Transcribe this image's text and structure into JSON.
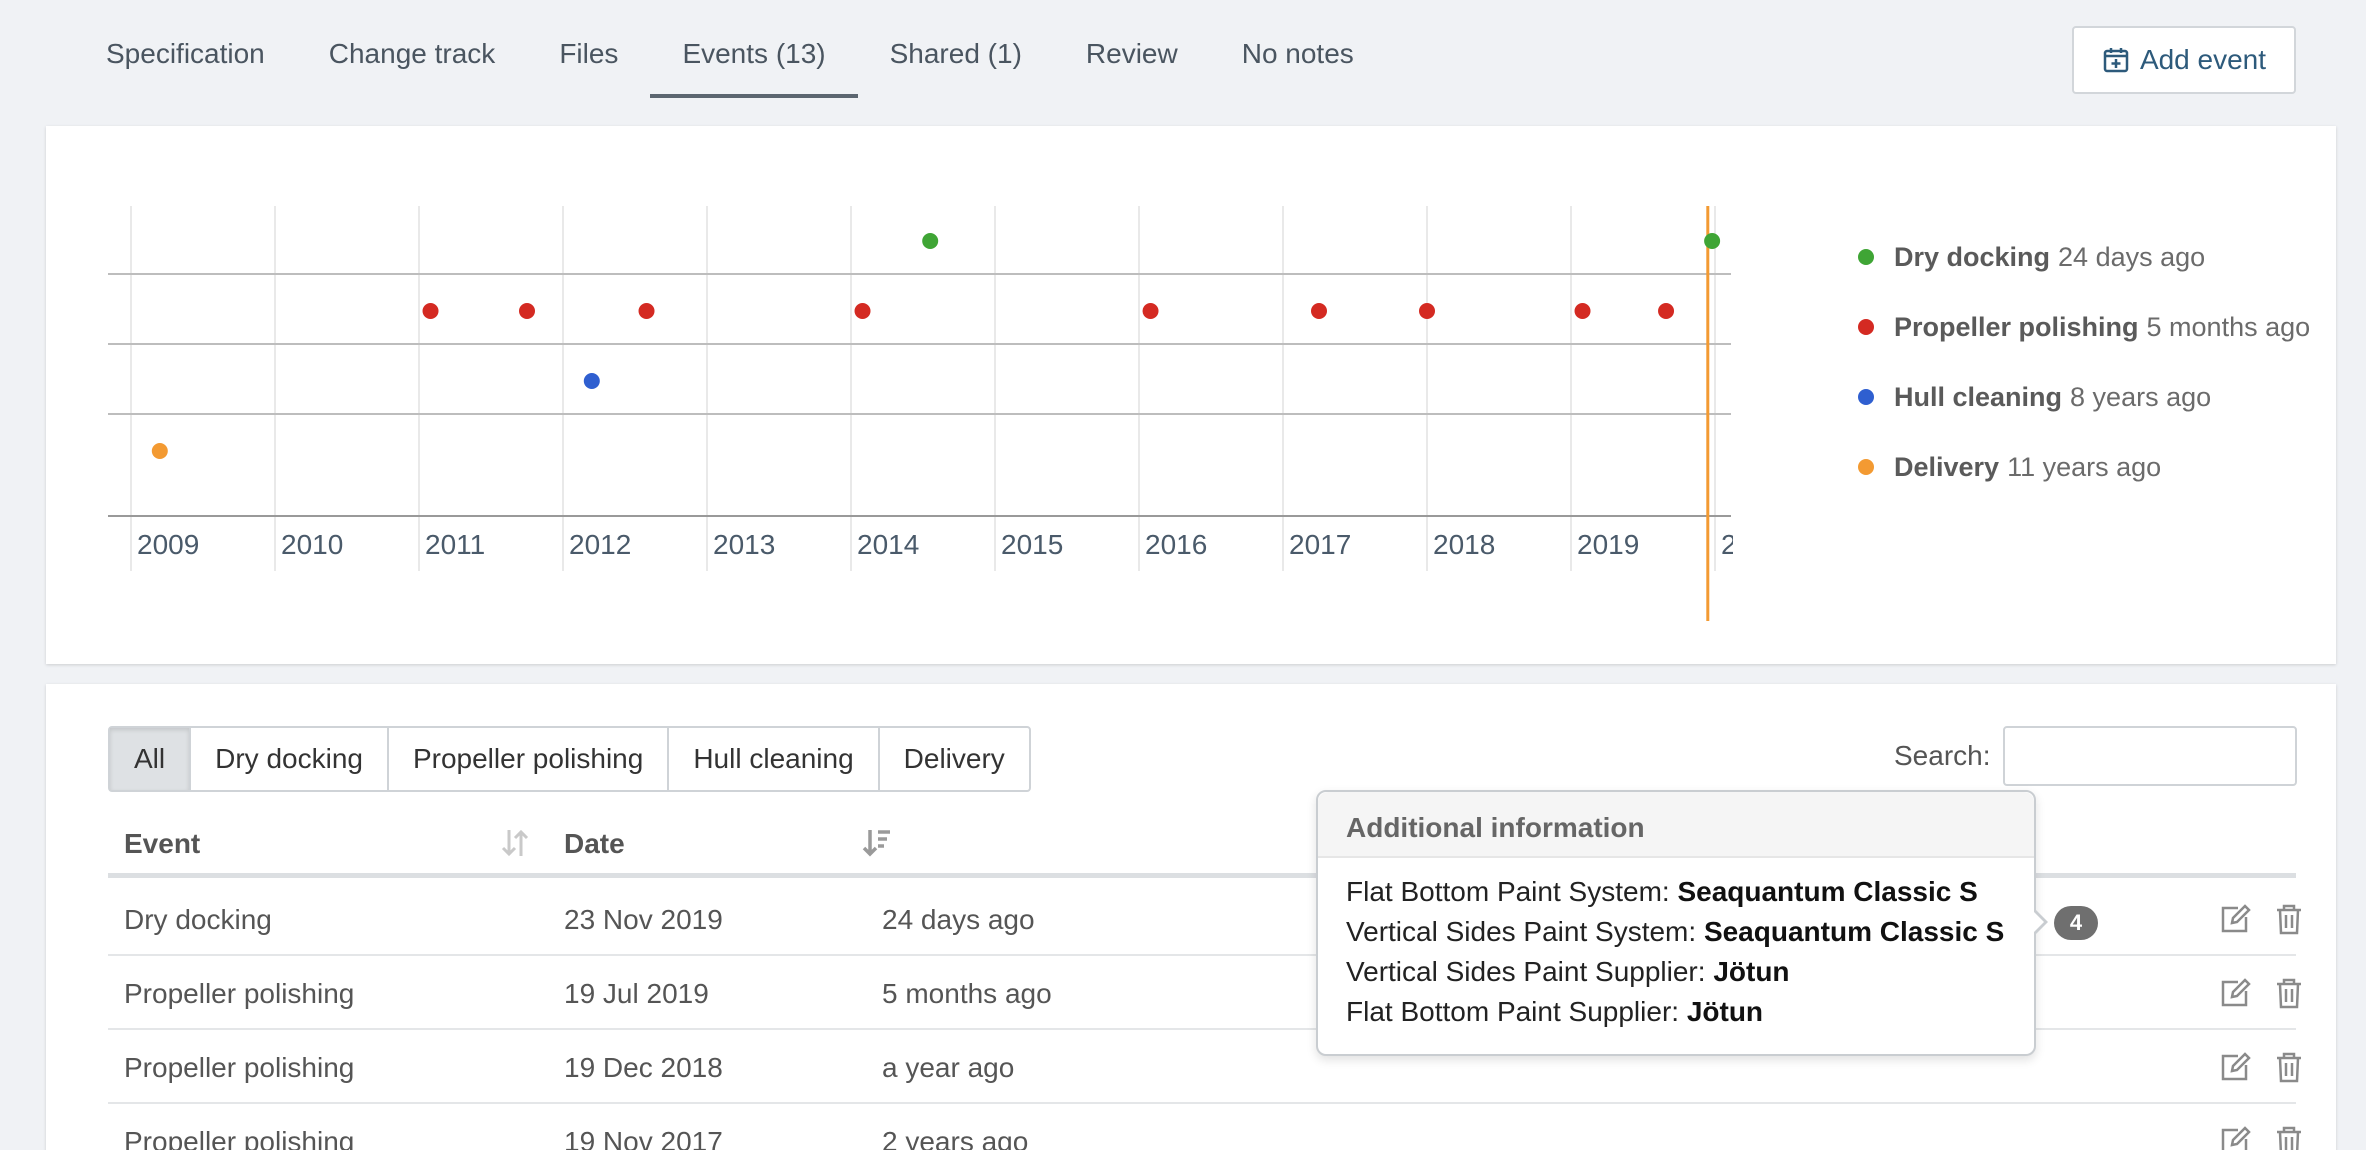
{
  "tabs": [
    {
      "label": "Specification"
    },
    {
      "label": "Change track"
    },
    {
      "label": "Files"
    },
    {
      "label": "Events (13)",
      "active": true
    },
    {
      "label": "Shared (1)"
    },
    {
      "label": "Review"
    },
    {
      "label": "No notes"
    }
  ],
  "add_event_label": "Add event",
  "timeline": {
    "years": [
      "2009",
      "2010",
      "2011",
      "2012",
      "2013",
      "2014",
      "2015",
      "2016",
      "2017",
      "2018",
      "2019",
      "2"
    ],
    "today_line_color": "#f39a32",
    "legend": [
      {
        "name": "Dry docking",
        "ago": "24 days ago",
        "color": "#3fa535"
      },
      {
        "name": "Propeller polishing",
        "ago": "5 months ago",
        "color": "#d42a22"
      },
      {
        "name": "Hull cleaning",
        "ago": "8 years ago",
        "color": "#2f5fd0"
      },
      {
        "name": "Delivery",
        "ago": "11 years ago",
        "color": "#f39a32"
      }
    ]
  },
  "chart_data": {
    "type": "scatter",
    "xlabel": "",
    "ylabel": "",
    "xlim": [
      2008.8,
      2020.1
    ],
    "series": [
      {
        "name": "Dry docking",
        "color": "#3fa535",
        "x": [
          2014.55,
          2019.98
        ]
      },
      {
        "name": "Propeller polishing",
        "color": "#d42a22",
        "x": [
          2011.08,
          2011.75,
          2012.58,
          2014.08,
          2016.08,
          2017.25,
          2018.0,
          2019.08,
          2019.66
        ]
      },
      {
        "name": "Hull cleaning",
        "color": "#2f5fd0",
        "x": [
          2012.2
        ]
      },
      {
        "name": "Delivery",
        "color": "#f39a32",
        "x": [
          2009.2
        ]
      }
    ],
    "today": 2019.95
  },
  "filters": [
    "All",
    "Dry docking",
    "Propeller polishing",
    "Hull cleaning",
    "Delivery"
  ],
  "search_label": "Search:",
  "search_value": "",
  "table": {
    "headers": {
      "event": "Event",
      "date": "Date"
    },
    "rows": [
      {
        "event": "Dry docking",
        "date": "23 Nov 2019",
        "ago": "24 days ago"
      },
      {
        "event": "Propeller polishing",
        "date": "19 Jul 2019",
        "ago": "5 months ago"
      },
      {
        "event": "Propeller polishing",
        "date": "19 Dec 2018",
        "ago": "a year ago"
      },
      {
        "event": "Propeller polishing",
        "date": "19 Nov 2017",
        "ago": "2 years ago"
      }
    ]
  },
  "popover": {
    "title": "Additional information",
    "lines": [
      {
        "key": "Flat Bottom Paint System: ",
        "value": "Seaquantum Classic S"
      },
      {
        "key": "Vertical Sides Paint System: ",
        "value": "Seaquantum Classic S"
      },
      {
        "key": "Vertical Sides Paint Supplier: ",
        "value": "Jötun"
      },
      {
        "key": "Flat Bottom Paint Supplier: ",
        "value": "Jötun"
      }
    ],
    "badge": "4"
  }
}
